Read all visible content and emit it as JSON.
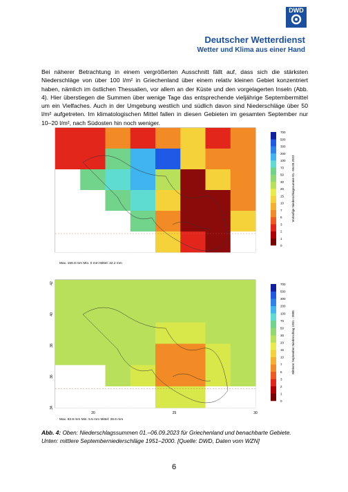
{
  "header": {
    "logo": "DWD",
    "org": "Deutscher Wetterdienst",
    "slogan": "Wetter und Klima aus einer Hand"
  },
  "body": {
    "paragraph": "Bei näherer Betrachtung in einem vergrößerten Ausschnitt fällt auf, dass sich die stärksten Niederschläge von über 100 l/m² in Griechenland über einem relativ kleinen Gebiet konzentriert haben, nämlich im östlichen Thessalien, vor allem an der Küste und den vorgelagerten Inseln (Abb. 4). Hier überstiegen die Summen über wenige Tage das entsprechende vieljährige Septembermittel um ein Vielfaches. Auch in der Umgebung westlich und südlich davon sind Niederschläge über 50 l/m² aufgetreten. Im klimatologischen Mittel fallen in diesen Gebieten im gesamten September nur 10–20 l/m², nach Südosten hin noch weniger."
  },
  "figures": [
    {
      "colorbar_title": "Vorläufige Niederschlagssumme 01.–06.09.2023",
      "colorbar_labels": [
        "700",
        "500",
        "300",
        "200",
        "100",
        "70",
        "50",
        "30",
        "20",
        "15",
        "10",
        "7",
        "5",
        "3",
        "2",
        "1",
        "0"
      ],
      "stats": "Max. 156.8 mm  Min. 0 mm  Mittel: 22.2 mm"
    },
    {
      "colorbar_title": "Mittlerer September Niederschlag 1951 - 2000",
      "colorbar_labels": [
        "700",
        "500",
        "300",
        "200",
        "100",
        "70",
        "50",
        "30",
        "20",
        "15",
        "10",
        "7",
        "5",
        "3",
        "2",
        "1",
        "0"
      ],
      "stats": "Max. 83.9 mm  Min. 5.5 mm  Mittel: 28.6 mm",
      "x_labels": [
        "20",
        "25",
        "30"
      ],
      "y_labels": [
        "42",
        "40",
        "38",
        "36",
        "34"
      ]
    }
  ],
  "caption": {
    "label": "Abb. 4:",
    "text": "Oben: Niederschlagssummen 01.–06.09.2023 für Griechenland und benachbarte Gebiete. Unten: mittlere Septemberniederschläge 1951–2000. [Quelle: DWD, Daten vom WZN]"
  },
  "page_number": "6"
}
